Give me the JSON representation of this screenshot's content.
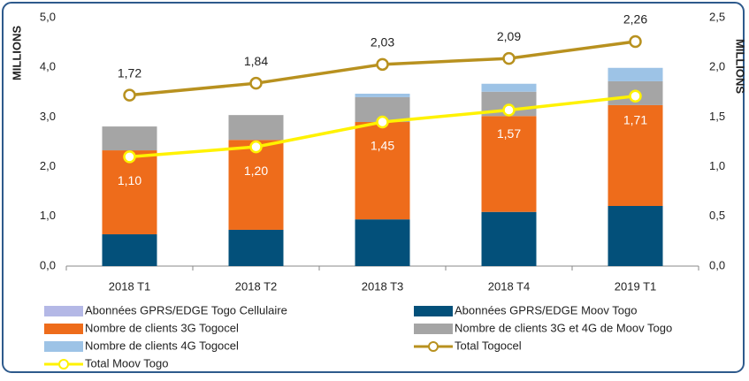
{
  "chart_data": {
    "type": "bar",
    "categories": [
      "2018 T1",
      "2018 T2",
      "2018 T3",
      "2018 T4",
      "2019 T1"
    ],
    "ylabel": "MILLIONS",
    "y2label": "MILLIONS",
    "ylim": [
      0,
      5
    ],
    "yticks": [
      {
        "value": 0,
        "label": "0,0"
      },
      {
        "value": 1,
        "label": "1,0"
      },
      {
        "value": 2,
        "label": "2,0"
      },
      {
        "value": 3,
        "label": "3,0"
      },
      {
        "value": 4,
        "label": "4,0"
      },
      {
        "value": 5,
        "label": "5,0"
      }
    ],
    "y2lim": [
      0,
      2.5
    ],
    "y2ticks": [
      {
        "value": 0,
        "label": "0,0"
      },
      {
        "value": 0.5,
        "label": "0,5"
      },
      {
        "value": 1,
        "label": "1,0"
      },
      {
        "value": 1.5,
        "label": "1,5"
      },
      {
        "value": 2,
        "label": "2,0"
      },
      {
        "value": 2.5,
        "label": "2,5"
      }
    ],
    "series": [
      {
        "name": "Abonnées GPRS/EDGE Togo Cellulaire",
        "type": "bar",
        "color": "#b4b8e6",
        "values": [
          0,
          0,
          0,
          0,
          0
        ]
      },
      {
        "name": "Abonnées GPRS/EDGE  Moov Togo",
        "type": "bar",
        "color": "#03507a",
        "values": [
          0.64,
          0.73,
          0.94,
          1.09,
          1.21
        ]
      },
      {
        "name": "Nombre de clients 3G Togocel",
        "type": "bar",
        "color": "#ee6c1b",
        "values": [
          1.69,
          1.81,
          1.96,
          1.93,
          2.03
        ]
      },
      {
        "name": "Nombre de clients 3G et 4G de Moov Togo",
        "type": "bar",
        "color": "#a5a5a5",
        "values": [
          0.48,
          0.5,
          0.5,
          0.49,
          0.48
        ]
      },
      {
        "name": "Nombre de clients 4G Togocel",
        "type": "bar",
        "color": "#9dc3e6",
        "values": [
          0,
          0,
          0.07,
          0.16,
          0.27
        ]
      },
      {
        "name": "Total Togocel",
        "type": "line",
        "axis": "y2",
        "color": "#b8911f",
        "values": [
          1.72,
          1.84,
          2.03,
          2.09,
          2.26
        ],
        "value_labels": [
          "1,72",
          "1,84",
          "2,03",
          "2,09",
          "2,26"
        ]
      },
      {
        "name": "Total Moov Togo",
        "type": "line",
        "axis": "y2",
        "color": "#fff200",
        "values": [
          1.1,
          1.2,
          1.45,
          1.57,
          1.71
        ],
        "value_labels": [
          "1,10",
          "1,20",
          "1,45",
          "1,57",
          "1,71"
        ]
      }
    ]
  }
}
